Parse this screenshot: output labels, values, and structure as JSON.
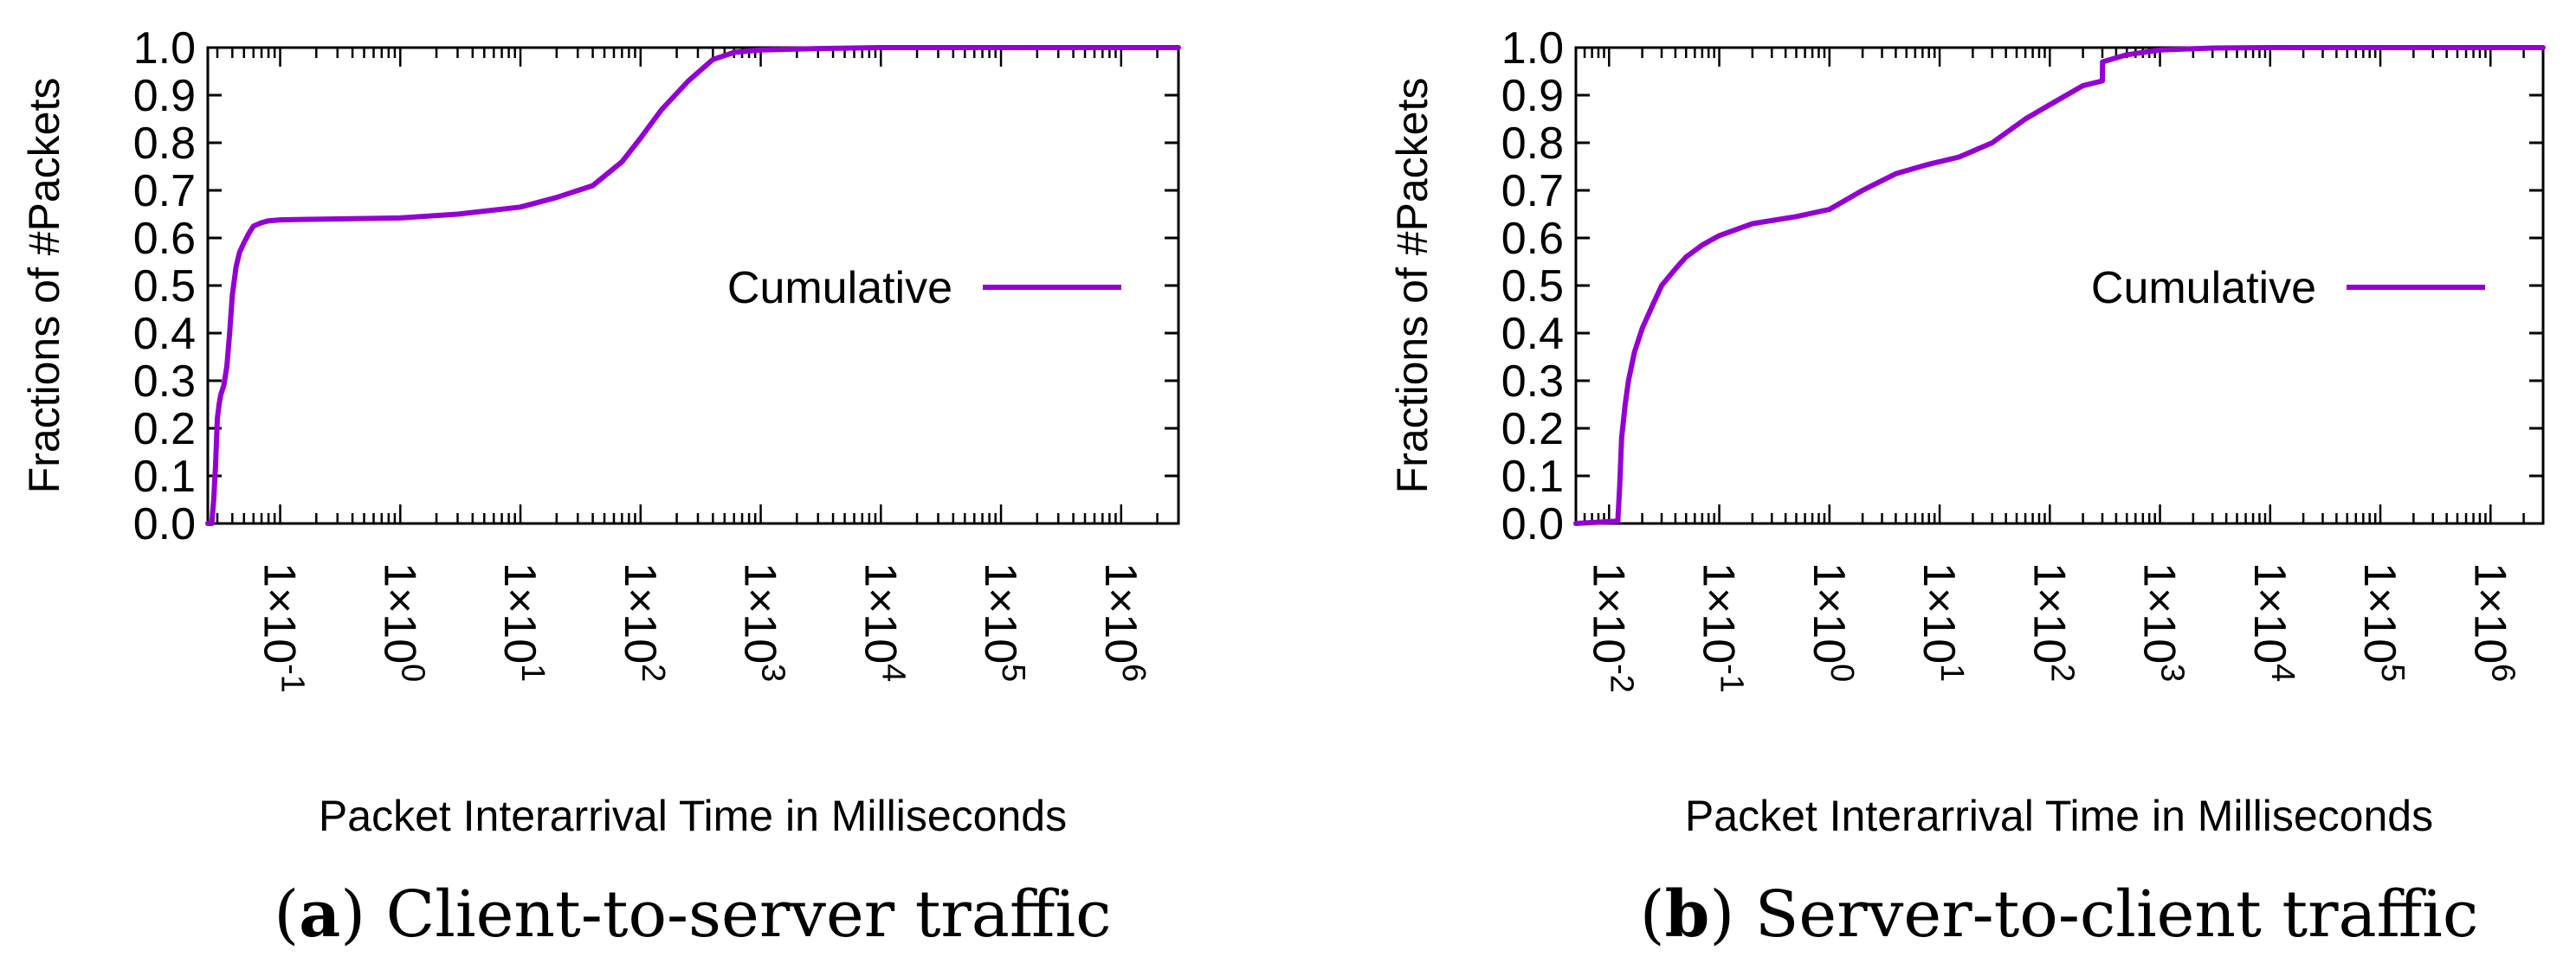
{
  "chart_data": [
    {
      "type": "line",
      "panel": "a",
      "caption_letter": "a",
      "caption_text": "Client-to-server traffic",
      "xlabel": "Packet Interarrival Time in Milliseconds",
      "ylabel": "Fractions of #Packets",
      "xscale": "log",
      "xlim": [
        0.025,
        3000000
      ],
      "ylim": [
        0,
        1
      ],
      "grid": false,
      "legend_position": "middle-right",
      "y_ticks": [
        "0.0",
        "0.1",
        "0.2",
        "0.3",
        "0.4",
        "0.5",
        "0.6",
        "0.7",
        "0.8",
        "0.9",
        "1.0"
      ],
      "x_ticks": [
        {
          "base": "1×10",
          "exp": "-1",
          "value": 0.1
        },
        {
          "base": "1×10",
          "exp": "0",
          "value": 1
        },
        {
          "base": "1×10",
          "exp": "1",
          "value": 10
        },
        {
          "base": "1×10",
          "exp": "2",
          "value": 100
        },
        {
          "base": "1×10",
          "exp": "3",
          "value": 1000
        },
        {
          "base": "1×10",
          "exp": "4",
          "value": 10000
        },
        {
          "base": "1×10",
          "exp": "5",
          "value": 100000
        },
        {
          "base": "1×10",
          "exp": "6",
          "value": 1000000
        }
      ],
      "series": [
        {
          "name": "Cumulative",
          "color": "#9400d3",
          "x": [
            0.025,
            0.027,
            0.028,
            0.029,
            0.03,
            0.031,
            0.032,
            0.034,
            0.036,
            0.038,
            0.04,
            0.043,
            0.046,
            0.05,
            0.055,
            0.06,
            0.07,
            0.08,
            0.1,
            0.15,
            0.3,
            1,
            3,
            10,
            20,
            40,
            70,
            100,
            150,
            250,
            400,
            600,
            1000,
            3000,
            10000,
            100000,
            3000000
          ],
          "y": [
            0.0,
            0.0,
            0.05,
            0.12,
            0.22,
            0.25,
            0.27,
            0.29,
            0.33,
            0.4,
            0.48,
            0.54,
            0.57,
            0.59,
            0.61,
            0.625,
            0.632,
            0.636,
            0.638,
            0.639,
            0.64,
            0.642,
            0.65,
            0.665,
            0.685,
            0.71,
            0.76,
            0.81,
            0.87,
            0.93,
            0.975,
            0.99,
            0.995,
            0.998,
            1.0,
            1.0,
            1.0
          ]
        }
      ]
    },
    {
      "type": "line",
      "panel": "b",
      "caption_letter": "b",
      "caption_text": "Server-to-client traffic",
      "xlabel": "Packet Interarrival Time in Milliseconds",
      "ylabel": "Fractions of #Packets",
      "xscale": "log",
      "xlim": [
        0.005,
        3000000
      ],
      "ylim": [
        0,
        1
      ],
      "grid": false,
      "legend_position": "middle-right",
      "y_ticks": [
        "0.0",
        "0.1",
        "0.2",
        "0.3",
        "0.4",
        "0.5",
        "0.6",
        "0.7",
        "0.8",
        "0.9",
        "1.0"
      ],
      "x_ticks": [
        {
          "base": "1×10",
          "exp": "-2",
          "value": 0.01
        },
        {
          "base": "1×10",
          "exp": "-1",
          "value": 0.1
        },
        {
          "base": "1×10",
          "exp": "0",
          "value": 1
        },
        {
          "base": "1×10",
          "exp": "1",
          "value": 10
        },
        {
          "base": "1×10",
          "exp": "2",
          "value": 100
        },
        {
          "base": "1×10",
          "exp": "3",
          "value": 1000
        },
        {
          "base": "1×10",
          "exp": "4",
          "value": 10000
        },
        {
          "base": "1×10",
          "exp": "5",
          "value": 100000
        },
        {
          "base": "1×10",
          "exp": "6",
          "value": 1000000
        }
      ],
      "series": [
        {
          "name": "Cumulative",
          "color": "#9400d3",
          "x": [
            0.005,
            0.012,
            0.0125,
            0.013,
            0.014,
            0.015,
            0.017,
            0.02,
            0.025,
            0.03,
            0.04,
            0.05,
            0.07,
            0.1,
            0.2,
            0.5,
            1,
            2,
            4,
            8,
            15,
            30,
            60,
            100,
            200,
            300,
            301,
            500,
            1000,
            3000,
            10000,
            3000000
          ],
          "y": [
            0.0,
            0.005,
            0.08,
            0.18,
            0.25,
            0.3,
            0.36,
            0.41,
            0.46,
            0.5,
            0.535,
            0.56,
            0.585,
            0.605,
            0.63,
            0.645,
            0.66,
            0.7,
            0.735,
            0.755,
            0.77,
            0.8,
            0.85,
            0.88,
            0.92,
            0.93,
            0.97,
            0.985,
            0.995,
            0.999,
            1.0,
            1.0
          ]
        }
      ]
    }
  ]
}
